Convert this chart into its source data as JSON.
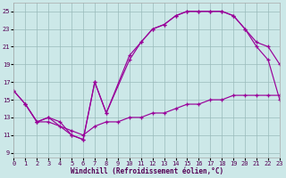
{
  "xlabel": "Windchill (Refroidissement éolien,°C)",
  "bg_color": "#cce8e8",
  "line_color": "#990099",
  "grid_color": "#99bbbb",
  "xlim": [
    0,
    23
  ],
  "ylim": [
    8.5,
    26
  ],
  "xticks": [
    0,
    1,
    2,
    3,
    4,
    5,
    6,
    7,
    8,
    9,
    10,
    11,
    12,
    13,
    14,
    15,
    16,
    17,
    18,
    19,
    20,
    21,
    22,
    23
  ],
  "yticks": [
    9,
    11,
    13,
    15,
    17,
    19,
    21,
    23,
    25
  ],
  "line1_x": [
    0,
    1,
    2,
    3,
    4,
    5,
    6,
    7,
    8,
    10,
    11,
    12,
    13,
    14,
    15,
    16,
    17,
    18,
    19,
    20,
    21,
    22,
    23
  ],
  "line1_y": [
    16,
    14.5,
    12.5,
    13.0,
    12.5,
    11.0,
    10.5,
    17.0,
    13.5,
    19.5,
    21.5,
    23.0,
    23.5,
    24.5,
    25.0,
    25.0,
    25.0,
    25.0,
    24.5,
    23.0,
    21.0,
    19.5,
    15.0
  ],
  "line2_x": [
    0,
    1,
    2,
    3,
    5,
    6,
    7,
    8,
    10,
    11,
    12,
    13,
    14,
    15,
    16,
    17,
    18,
    19,
    20,
    21,
    22,
    23
  ],
  "line2_y": [
    16,
    14.5,
    12.5,
    13.0,
    11.0,
    10.5,
    17.0,
    13.5,
    20.0,
    21.5,
    23.0,
    23.5,
    24.5,
    25.0,
    25.0,
    25.0,
    25.0,
    24.5,
    23.0,
    21.5,
    21.0,
    19.0
  ],
  "line3_x": [
    1,
    2,
    3,
    4,
    5,
    6,
    7,
    8,
    9,
    10,
    11,
    12,
    13,
    14,
    15,
    16,
    17,
    18,
    19,
    20,
    21,
    22,
    23
  ],
  "line3_y": [
    14.5,
    12.5,
    12.5,
    12.0,
    11.5,
    11.0,
    12.0,
    12.5,
    12.5,
    13.0,
    13.0,
    13.5,
    13.5,
    14.0,
    14.5,
    14.5,
    15.0,
    15.0,
    15.5,
    15.5,
    15.5,
    15.5,
    15.5
  ]
}
